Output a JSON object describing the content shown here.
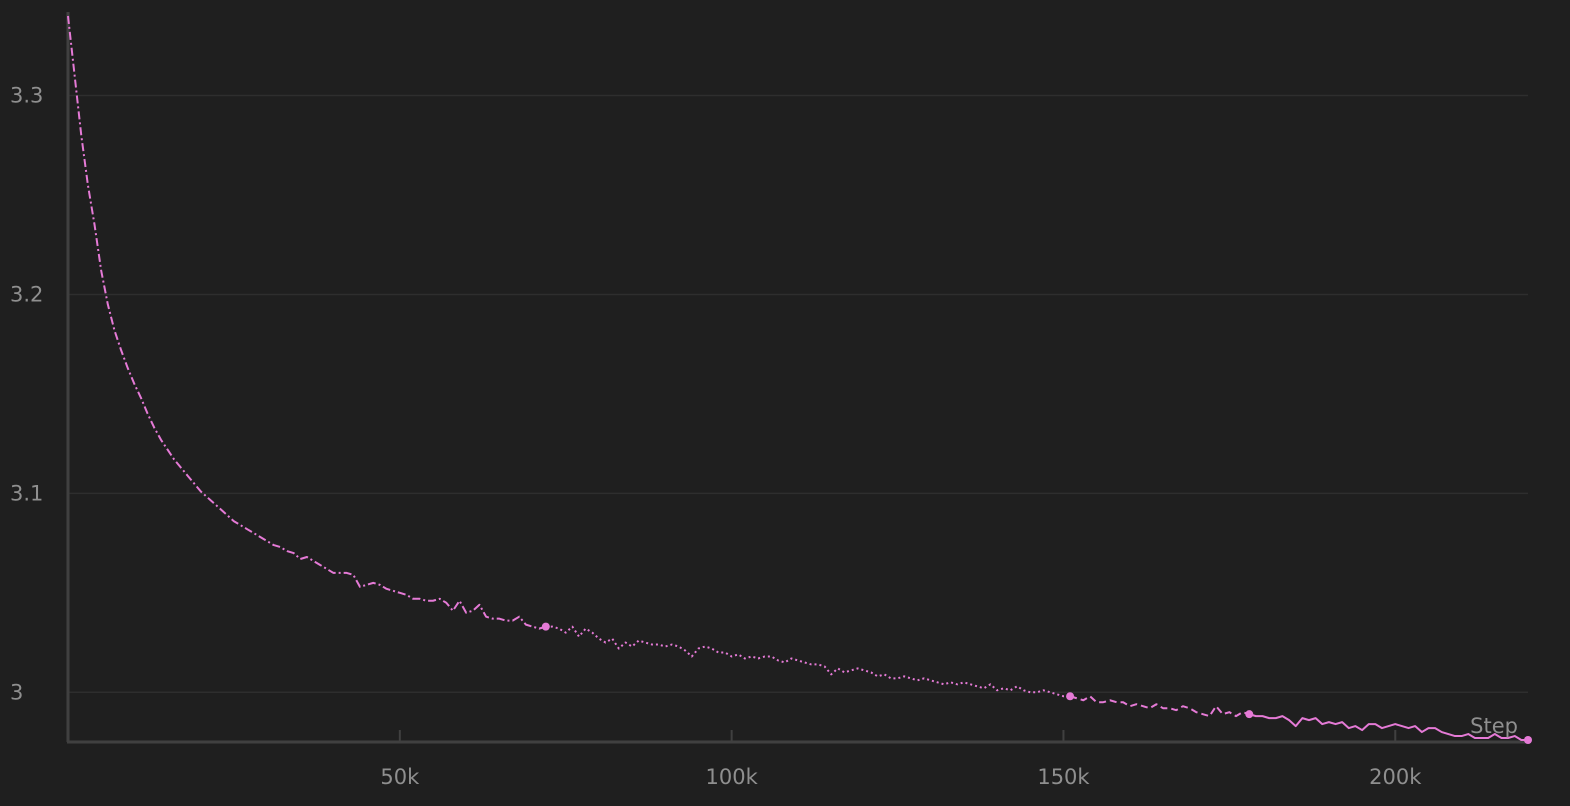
{
  "chart_data": {
    "type": "line",
    "title": "",
    "xlabel": "Step",
    "ylabel": "",
    "xlim": [
      0,
      220000
    ],
    "ylim": [
      2.975,
      3.342
    ],
    "grid": true,
    "x_ticks": [
      {
        "value": 50000,
        "label": "50k"
      },
      {
        "value": 100000,
        "label": "100k"
      },
      {
        "value": 150000,
        "label": "150k"
      },
      {
        "value": 200000,
        "label": "200k"
      }
    ],
    "y_ticks": [
      {
        "value": 3.0,
        "label": "3"
      },
      {
        "value": 3.1,
        "label": "3.1"
      },
      {
        "value": 3.2,
        "label": "3.2"
      },
      {
        "value": 3.3,
        "label": "3.3"
      }
    ],
    "colors": {
      "line": "#e57ad6",
      "grid": "#2e2e2e",
      "axis": "#404040",
      "background": "#1f1f1f"
    },
    "series": [
      {
        "segments": [
          {
            "style": "dashdot",
            "points": [
              [
                0,
                3.34
              ],
              [
                1000,
                3.31
              ],
              [
                2000,
                3.28
              ],
              [
                3000,
                3.255
              ],
              [
                4000,
                3.235
              ],
              [
                5000,
                3.212
              ],
              [
                6000,
                3.195
              ],
              [
                7000,
                3.182
              ],
              [
                8000,
                3.172
              ],
              [
                9000,
                3.163
              ],
              [
                10000,
                3.155
              ],
              [
                11000,
                3.148
              ],
              [
                12000,
                3.14
              ],
              [
                13000,
                3.133
              ],
              [
                14000,
                3.127
              ],
              [
                15000,
                3.122
              ],
              [
                16000,
                3.117
              ],
              [
                17000,
                3.113
              ],
              [
                18000,
                3.109
              ],
              [
                19000,
                3.105
              ],
              [
                20000,
                3.101
              ],
              [
                21000,
                3.098
              ],
              [
                22000,
                3.095
              ],
              [
                23000,
                3.092
              ],
              [
                24000,
                3.089
              ],
              [
                25000,
                3.086
              ],
              [
                26000,
                3.084
              ],
              [
                27000,
                3.082
              ],
              [
                28000,
                3.08
              ],
              [
                29000,
                3.078
              ],
              [
                30000,
                3.076
              ],
              [
                31000,
                3.074
              ],
              [
                32000,
                3.073
              ],
              [
                33000,
                3.071
              ],
              [
                34000,
                3.07
              ],
              [
                35000,
                3.067
              ],
              [
                36000,
                3.068
              ],
              [
                37000,
                3.066
              ],
              [
                38000,
                3.064
              ],
              [
                39000,
                3.062
              ],
              [
                40000,
                3.06
              ],
              [
                41000,
                3.06
              ],
              [
                42000,
                3.06
              ],
              [
                43000,
                3.059
              ],
              [
                44000,
                3.053
              ],
              [
                45000,
                3.054
              ],
              [
                46000,
                3.055
              ],
              [
                47000,
                3.054
              ],
              [
                48000,
                3.052
              ],
              [
                49000,
                3.051
              ],
              [
                50000,
                3.05
              ],
              [
                51000,
                3.049
              ],
              [
                52000,
                3.047
              ],
              [
                53000,
                3.047
              ],
              [
                54000,
                3.046
              ],
              [
                55000,
                3.046
              ],
              [
                56000,
                3.047
              ],
              [
                57000,
                3.045
              ],
              [
                58000,
                3.041
              ],
              [
                59000,
                3.046
              ],
              [
                60000,
                3.04
              ],
              [
                61000,
                3.041
              ],
              [
                62000,
                3.044
              ],
              [
                63000,
                3.038
              ],
              [
                64000,
                3.037
              ],
              [
                65000,
                3.037
              ],
              [
                66000,
                3.036
              ],
              [
                67000,
                3.036
              ],
              [
                68000,
                3.038
              ],
              [
                69000,
                3.034
              ],
              [
                70000,
                3.033
              ],
              [
                71000,
                3.032
              ],
              [
                72000,
                3.033
              ]
            ]
          },
          {
            "style": "dotted",
            "points": [
              [
                72000,
                3.033
              ],
              [
                73000,
                3.033
              ],
              [
                74000,
                3.032
              ],
              [
                75000,
                3.03
              ],
              [
                76000,
                3.033
              ],
              [
                77000,
                3.028
              ],
              [
                78000,
                3.032
              ],
              [
                79000,
                3.03
              ],
              [
                80000,
                3.027
              ],
              [
                81000,
                3.025
              ],
              [
                82000,
                3.027
              ],
              [
                83000,
                3.022
              ],
              [
                84000,
                3.025
              ],
              [
                85000,
                3.023
              ],
              [
                86000,
                3.026
              ],
              [
                87000,
                3.025
              ],
              [
                88000,
                3.024
              ],
              [
                89000,
                3.024
              ],
              [
                90000,
                3.023
              ],
              [
                91000,
                3.024
              ],
              [
                92000,
                3.023
              ],
              [
                93000,
                3.021
              ],
              [
                94000,
                3.018
              ],
              [
                95000,
                3.022
              ],
              [
                96000,
                3.023
              ],
              [
                97000,
                3.022
              ],
              [
                98000,
                3.02
              ],
              [
                99000,
                3.02
              ],
              [
                100000,
                3.018
              ],
              [
                101000,
                3.019
              ],
              [
                102000,
                3.017
              ],
              [
                103000,
                3.018
              ],
              [
                104000,
                3.017
              ],
              [
                105000,
                3.018
              ],
              [
                106000,
                3.018
              ],
              [
                107000,
                3.016
              ],
              [
                108000,
                3.015
              ],
              [
                109000,
                3.017
              ],
              [
                110000,
                3.016
              ],
              [
                111000,
                3.015
              ],
              [
                112000,
                3.014
              ],
              [
                113000,
                3.014
              ],
              [
                114000,
                3.013
              ],
              [
                115000,
                3.009
              ],
              [
                116000,
                3.012
              ],
              [
                117000,
                3.01
              ],
              [
                118000,
                3.011
              ],
              [
                119000,
                3.012
              ],
              [
                120000,
                3.011
              ],
              [
                121000,
                3.01
              ],
              [
                122000,
                3.008
              ],
              [
                123000,
                3.009
              ],
              [
                124000,
                3.007
              ],
              [
                125000,
                3.007
              ],
              [
                126000,
                3.008
              ],
              [
                127000,
                3.007
              ],
              [
                128000,
                3.006
              ],
              [
                129000,
                3.007
              ],
              [
                130000,
                3.006
              ],
              [
                131000,
                3.005
              ],
              [
                132000,
                3.004
              ],
              [
                133000,
                3.005
              ],
              [
                134000,
                3.004
              ],
              [
                135000,
                3.005
              ],
              [
                136000,
                3.004
              ],
              [
                137000,
                3.003
              ],
              [
                138000,
                3.002
              ],
              [
                139000,
                3.004
              ],
              [
                140000,
                3.001
              ],
              [
                141000,
                3.002
              ],
              [
                142000,
                3.001
              ],
              [
                143000,
                3.003
              ],
              [
                144000,
                3.001
              ],
              [
                145000,
                3.0
              ],
              [
                146000,
                3.0
              ],
              [
                147000,
                3.001
              ],
              [
                148000,
                3.0
              ],
              [
                149000,
                2.999
              ],
              [
                150000,
                2.998
              ],
              [
                151000,
                2.998
              ]
            ]
          },
          {
            "style": "dashed",
            "points": [
              [
                151000,
                2.998
              ],
              [
                152000,
                2.997
              ],
              [
                153000,
                2.996
              ],
              [
                154000,
                2.998
              ],
              [
                155000,
                2.995
              ],
              [
                156000,
                2.995
              ],
              [
                157000,
                2.996
              ],
              [
                158000,
                2.995
              ],
              [
                159000,
                2.995
              ],
              [
                160000,
                2.993
              ],
              [
                161000,
                2.994
              ],
              [
                162000,
                2.993
              ],
              [
                163000,
                2.992
              ],
              [
                164000,
                2.994
              ],
              [
                165000,
                2.992
              ],
              [
                166000,
                2.992
              ],
              [
                167000,
                2.991
              ],
              [
                168000,
                2.993
              ],
              [
                169000,
                2.992
              ],
              [
                170000,
                2.99
              ],
              [
                171000,
                2.989
              ],
              [
                172000,
                2.988
              ],
              [
                173000,
                2.993
              ],
              [
                174000,
                2.989
              ],
              [
                175000,
                2.99
              ],
              [
                176000,
                2.988
              ],
              [
                177000,
                2.99
              ],
              [
                178000,
                2.989
              ]
            ]
          },
          {
            "style": "solid",
            "points": [
              [
                178000,
                2.989
              ],
              [
                179000,
                2.988
              ],
              [
                180000,
                2.988
              ],
              [
                181000,
                2.987
              ],
              [
                182000,
                2.987
              ],
              [
                183000,
                2.988
              ],
              [
                184000,
                2.986
              ],
              [
                185000,
                2.983
              ],
              [
                186000,
                2.987
              ],
              [
                187000,
                2.986
              ],
              [
                188000,
                2.987
              ],
              [
                189000,
                2.984
              ],
              [
                190000,
                2.985
              ],
              [
                191000,
                2.984
              ],
              [
                192000,
                2.985
              ],
              [
                193000,
                2.982
              ],
              [
                194000,
                2.983
              ],
              [
                195000,
                2.981
              ],
              [
                196000,
                2.984
              ],
              [
                197000,
                2.984
              ],
              [
                198000,
                2.982
              ],
              [
                199000,
                2.983
              ],
              [
                200000,
                2.984
              ],
              [
                201000,
                2.983
              ],
              [
                202000,
                2.982
              ],
              [
                203000,
                2.983
              ],
              [
                204000,
                2.98
              ],
              [
                205000,
                2.982
              ],
              [
                206000,
                2.982
              ],
              [
                207000,
                2.98
              ],
              [
                208000,
                2.979
              ],
              [
                209000,
                2.978
              ],
              [
                210000,
                2.978
              ],
              [
                211000,
                2.979
              ],
              [
                212000,
                2.977
              ],
              [
                213000,
                2.977
              ],
              [
                214000,
                2.977
              ],
              [
                215000,
                2.979
              ],
              [
                216000,
                2.977
              ],
              [
                217000,
                2.977
              ],
              [
                218000,
                2.978
              ],
              [
                219000,
                2.976
              ],
              [
                220000,
                2.976
              ]
            ]
          }
        ],
        "markers": [
          [
            72000,
            3.033
          ],
          [
            151000,
            2.998
          ],
          [
            178000,
            2.989
          ],
          [
            220000,
            2.976
          ]
        ]
      }
    ]
  }
}
